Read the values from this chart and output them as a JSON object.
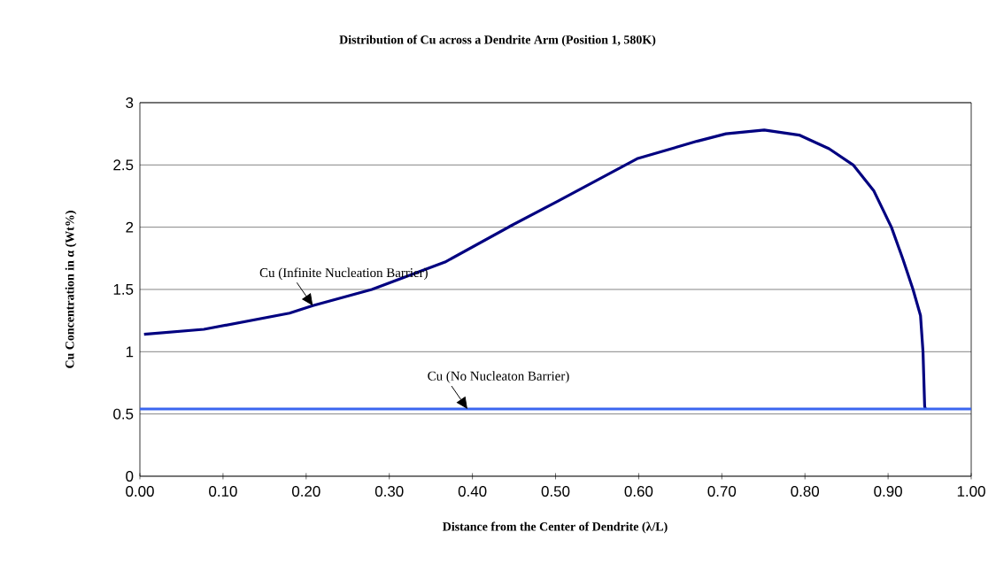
{
  "chart_data": {
    "type": "line",
    "title": "Distribution of Cu across a Dendrite Arm (Position 1, 580K)",
    "xlabel": "Distance from the Center of Dendrite (λ/L)",
    "ylabel": "Cu Concentration in α (Wt%)",
    "xlim": [
      0,
      1
    ],
    "ylim": [
      0,
      3
    ],
    "xticks": [
      {
        "value": 0,
        "label": "0.00"
      },
      {
        "value": 0.1,
        "label": "0.10"
      },
      {
        "value": 0.2,
        "label": "0.20"
      },
      {
        "value": 0.3,
        "label": "0.30"
      },
      {
        "value": 0.4,
        "label": "0.40"
      },
      {
        "value": 0.5,
        "label": "0.50"
      },
      {
        "value": 0.6,
        "label": "0.60"
      },
      {
        "value": 0.7,
        "label": "0.70"
      },
      {
        "value": 0.8,
        "label": "0.80"
      },
      {
        "value": 0.9,
        "label": "0.90"
      },
      {
        "value": 1,
        "label": "1.00"
      }
    ],
    "yticks": [
      0,
      0.5,
      1,
      1.5,
      2,
      2.5,
      3
    ],
    "grid": "y",
    "series": [
      {
        "name": "Cu (Infinite Nucleation Barrier)",
        "color": "#000080",
        "x": [
          0.005,
          0.077,
          0.18,
          0.208,
          0.279,
          0.367,
          0.446,
          0.503,
          0.598,
          0.67,
          0.705,
          0.751,
          0.793,
          0.829,
          0.858,
          0.883,
          0.904,
          0.918,
          0.93,
          0.939,
          0.942,
          0.944,
          0.945
        ],
        "values": [
          1.14,
          1.18,
          1.31,
          1.37,
          1.5,
          1.72,
          2.01,
          2.21,
          2.55,
          2.69,
          2.75,
          2.78,
          2.74,
          2.63,
          2.5,
          2.29,
          2.0,
          1.74,
          1.5,
          1.29,
          1.0,
          0.56,
          0.54
        ]
      },
      {
        "name": "Cu (No Nucleaton Barrier)",
        "color": "#3a66f0",
        "x": [
          0,
          1
        ],
        "values": [
          0.54,
          0.54
        ]
      }
    ]
  }
}
